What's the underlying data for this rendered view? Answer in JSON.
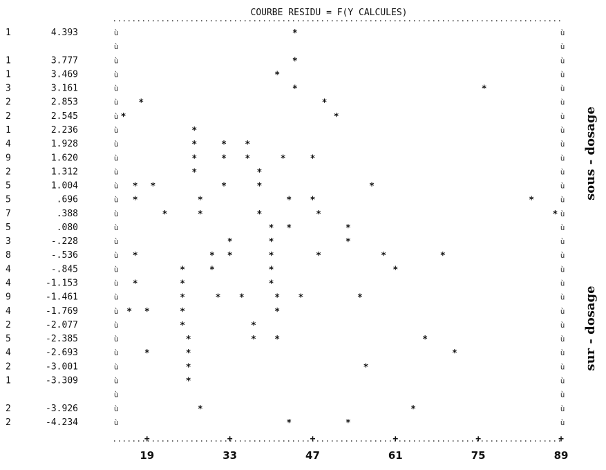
{
  "chart_data": {
    "type": "scatter",
    "title": "COURBE RESIDU = F(Y CALCULES)",
    "right_labels": [
      "sous - dosage",
      "sur - dosage"
    ],
    "x_ticks": [
      19,
      33,
      47,
      61,
      75,
      89
    ],
    "xlim": [
      14,
      89
    ],
    "zero_line_y": 0.08,
    "rows": [
      {
        "count": "1",
        "y": "4.393",
        "points": [
          44
        ]
      },
      {
        "count": "",
        "y": "",
        "points": []
      },
      {
        "count": "1",
        "y": "3.777",
        "points": [
          44
        ]
      },
      {
        "count": "1",
        "y": "3.469",
        "points": [
          41
        ]
      },
      {
        "count": "3",
        "y": "3.161",
        "points": [
          44,
          76
        ]
      },
      {
        "count": "2",
        "y": "2.853",
        "points": [
          18,
          49
        ]
      },
      {
        "count": "2",
        "y": "2.545",
        "points": [
          15,
          51
        ]
      },
      {
        "count": "1",
        "y": "2.236",
        "points": [
          27
        ]
      },
      {
        "count": "4",
        "y": "1.928",
        "points": [
          27,
          32,
          36
        ]
      },
      {
        "count": "9",
        "y": "1.620",
        "points": [
          27,
          32,
          36,
          42,
          47
        ]
      },
      {
        "count": "2",
        "y": "1.312",
        "points": [
          27,
          38
        ]
      },
      {
        "count": "5",
        "y": "1.004",
        "points": [
          17,
          20,
          32,
          38,
          57
        ]
      },
      {
        "count": "5",
        "y": ".696",
        "points": [
          17,
          28,
          43,
          47,
          84
        ]
      },
      {
        "count": "7",
        "y": ".388",
        "points": [
          22,
          28,
          38,
          48,
          88
        ]
      },
      {
        "count": "5",
        "y": ".080",
        "points": [
          40,
          43,
          53
        ]
      },
      {
        "count": "3",
        "y": "-.228",
        "points": [
          33,
          40,
          53
        ]
      },
      {
        "count": "8",
        "y": "-.536",
        "points": [
          17,
          30,
          33,
          40,
          48,
          59,
          69
        ]
      },
      {
        "count": "4",
        "y": "-.845",
        "points": [
          25,
          30,
          40,
          61
        ]
      },
      {
        "count": "4",
        "y": "-1.153",
        "points": [
          17,
          25,
          40
        ]
      },
      {
        "count": "9",
        "y": "-1.461",
        "points": [
          25,
          31,
          35,
          41,
          45,
          55
        ]
      },
      {
        "count": "4",
        "y": "-1.769",
        "points": [
          16,
          19,
          25,
          41
        ]
      },
      {
        "count": "2",
        "y": "-2.077",
        "points": [
          25,
          37
        ]
      },
      {
        "count": "5",
        "y": "-2.385",
        "points": [
          26,
          37,
          41,
          66
        ]
      },
      {
        "count": "4",
        "y": "-2.693",
        "points": [
          19,
          26,
          71
        ]
      },
      {
        "count": "2",
        "y": "-3.001",
        "points": [
          26,
          56
        ]
      },
      {
        "count": "1",
        "y": "-3.309",
        "points": [
          26
        ]
      },
      {
        "count": "",
        "y": "",
        "points": []
      },
      {
        "count": "2",
        "y": "-3.926",
        "points": [
          28,
          64
        ]
      },
      {
        "count": "2",
        "y": "-4.234",
        "points": [
          43,
          53
        ]
      }
    ]
  }
}
